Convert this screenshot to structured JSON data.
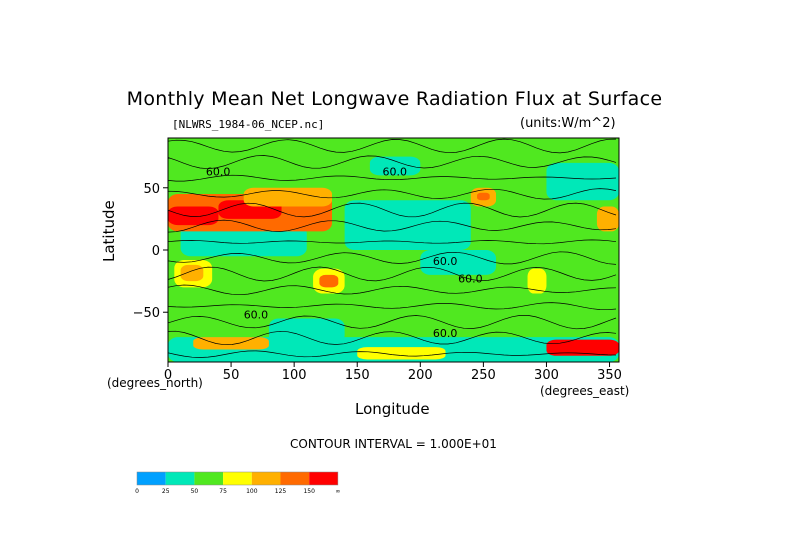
{
  "chart_data": {
    "type": "heatmap",
    "title": "Monthly Mean Net Longwave Radiation Flux at Surface",
    "file_label": "[NLWRS_1984-06_NCEP.nc]",
    "units_label": "(units:W/m^2)",
    "xlabel": "Longitude",
    "ylabel": "Latitude",
    "x_unit_label": "(degrees_east)",
    "y_unit_label": "(degrees_north)",
    "xlim": [
      0,
      357.5
    ],
    "ylim": [
      -90,
      90
    ],
    "x_ticks": [
      0,
      50,
      100,
      150,
      200,
      250,
      300,
      350
    ],
    "y_ticks": [
      50,
      0,
      -50
    ],
    "contour_interval": "CONTOUR INTERVAL = 1.000E+01",
    "contour_labels": [
      "60.0",
      "60.0",
      "60.0",
      "60.0",
      "60.0",
      "60.0"
    ],
    "colorbar": {
      "ticks": [
        "0",
        "25",
        "50",
        "75",
        "100",
        "125",
        "150",
        "∞"
      ],
      "colors": [
        "#00a0ff",
        "#00e8b8",
        "#50e820",
        "#ffff00",
        "#ffb000",
        "#ff6a00",
        "#ff0000"
      ]
    },
    "regions": [
      {
        "lon": [
          0,
          357.5
        ],
        "lat": [
          -90,
          90
        ],
        "level": 2
      },
      {
        "lon": [
          140,
          240
        ],
        "lat": [
          0,
          40
        ],
        "level": 1
      },
      {
        "lon": [
          10,
          110
        ],
        "lat": [
          -5,
          20
        ],
        "level": 1
      },
      {
        "lon": [
          200,
          260
        ],
        "lat": [
          -20,
          0
        ],
        "level": 1
      },
      {
        "lon": [
          80,
          140
        ],
        "lat": [
          -75,
          -55
        ],
        "level": 1
      },
      {
        "lon": [
          300,
          357.5
        ],
        "lat": [
          40,
          70
        ],
        "level": 1
      },
      {
        "lon": [
          0,
          130
        ],
        "lat": [
          15,
          45
        ],
        "level": 5
      },
      {
        "lon": [
          0,
          40
        ],
        "lat": [
          20,
          35
        ],
        "level": 6
      },
      {
        "lon": [
          40,
          90
        ],
        "lat": [
          25,
          40
        ],
        "level": 6
      },
      {
        "lon": [
          60,
          130
        ],
        "lat": [
          35,
          50
        ],
        "level": 4
      },
      {
        "lon": [
          5,
          35
        ],
        "lat": [
          -30,
          -8
        ],
        "level": 3
      },
      {
        "lon": [
          10,
          28
        ],
        "lat": [
          -25,
          -12
        ],
        "level": 4
      },
      {
        "lon": [
          115,
          140
        ],
        "lat": [
          -35,
          -15
        ],
        "level": 3
      },
      {
        "lon": [
          120,
          135
        ],
        "lat": [
          -30,
          -20
        ],
        "level": 5
      },
      {
        "lon": [
          240,
          260
        ],
        "lat": [
          35,
          50
        ],
        "level": 4
      },
      {
        "lon": [
          245,
          255
        ],
        "lat": [
          40,
          46
        ],
        "level": 5
      },
      {
        "lon": [
          285,
          300
        ],
        "lat": [
          -35,
          -15
        ],
        "level": 3
      },
      {
        "lon": [
          340,
          357.5
        ],
        "lat": [
          15,
          35
        ],
        "level": 4
      },
      {
        "lon": [
          160,
          200
        ],
        "lat": [
          60,
          75
        ],
        "level": 1
      },
      {
        "lon": [
          0,
          357.5
        ],
        "lat": [
          -90,
          -70
        ],
        "level": 1
      },
      {
        "lon": [
          20,
          80
        ],
        "lat": [
          -80,
          -70
        ],
        "level": 4
      },
      {
        "lon": [
          300,
          357.5
        ],
        "lat": [
          -85,
          -72
        ],
        "level": 6
      },
      {
        "lon": [
          150,
          220
        ],
        "lat": [
          -88,
          -78
        ],
        "level": 3
      }
    ]
  }
}
